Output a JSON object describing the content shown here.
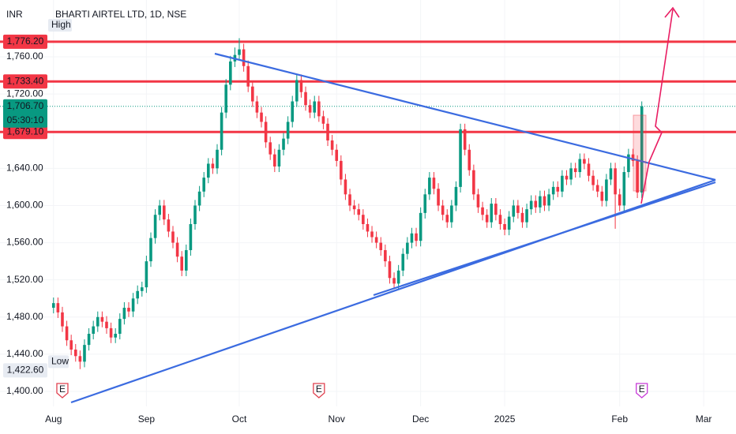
{
  "chart_data": {
    "type": "candlestick",
    "title": "BHARTI AIRTEL LTD, 1D, NSE",
    "currency": "INR",
    "up_color": "#089981",
    "down_color": "#f23645",
    "grid": true,
    "xlim": [
      -12.1,
      154.3
    ],
    "ylim": [
      1383.9,
      1821.1
    ],
    "xticks": [
      {
        "value": 0,
        "label": "Aug"
      },
      {
        "value": 21,
        "label": "Sep"
      },
      {
        "value": 42,
        "label": "Oct"
      },
      {
        "value": 64,
        "label": "Nov"
      },
      {
        "value": 83,
        "label": "Dec"
      },
      {
        "value": 102,
        "label": "2025"
      },
      {
        "value": 128,
        "label": "Feb"
      },
      {
        "value": 147,
        "label": "Mar"
      }
    ],
    "yticks": [
      {
        "value": 1400,
        "label": "1,400.00"
      },
      {
        "value": 1440,
        "label": "1,440.00"
      },
      {
        "value": 1480,
        "label": "1,480.00"
      },
      {
        "value": 1520,
        "label": "1,520.00"
      },
      {
        "value": 1560,
        "label": "1,560.00"
      },
      {
        "value": 1600,
        "label": "1,600.00"
      },
      {
        "value": 1640,
        "label": "1,640.00"
      },
      {
        "value": 1680,
        "label": "1,680.00"
      },
      {
        "value": 1720,
        "label": "1,720.00"
      },
      {
        "value": 1760,
        "label": "1,760.00"
      }
    ],
    "price_lines": [
      {
        "value": 1776.2,
        "label": "1,776.20",
        "color": "#f23645"
      },
      {
        "value": 1733.4,
        "label": "1,733.40",
        "color": "#f23645"
      },
      {
        "value": 1679.1,
        "label": "1,679.10",
        "color": "#f23645"
      }
    ],
    "last_price": {
      "value": 1706.7,
      "label": "1,706.70",
      "countdown": "05:30:10",
      "color": "#089981"
    },
    "high_marker": {
      "text": "High"
    },
    "low_marker": {
      "value": 1422.6,
      "label": "1,422.60",
      "text": "Low"
    },
    "events": [
      {
        "x": 2,
        "text": "E"
      },
      {
        "x": 60,
        "text": "E"
      },
      {
        "x": 133,
        "text": "E"
      }
    ],
    "open": [
      1490,
      1495,
      1485,
      1470,
      1455,
      1445,
      1438,
      1432,
      1450,
      1462,
      1470,
      1480,
      1475,
      1468,
      1458,
      1462,
      1478,
      1490,
      1486,
      1500,
      1508,
      1512,
      1540,
      1565,
      1590,
      1600,
      1585,
      1572,
      1560,
      1545,
      1530,
      1552,
      1580,
      1600,
      1615,
      1630,
      1645,
      1640,
      1660,
      1700,
      1730,
      1755,
      1762,
      1768,
      1750,
      1728,
      1712,
      1700,
      1690,
      1668,
      1655,
      1642,
      1660,
      1672,
      1690,
      1712,
      1735,
      1722,
      1708,
      1700,
      1712,
      1696,
      1688,
      1670,
      1660,
      1648,
      1628,
      1612,
      1600,
      1596,
      1590,
      1580,
      1572,
      1566,
      1560,
      1552,
      1540,
      1522,
      1516,
      1530,
      1548,
      1560,
      1570,
      1562,
      1592,
      1612,
      1630,
      1618,
      1600,
      1590,
      1582,
      1600,
      1620,
      1682,
      1660,
      1638,
      1612,
      1598,
      1590,
      1582,
      1602,
      1590,
      1580,
      1574,
      1588,
      1600,
      1592,
      1582,
      1596,
      1605,
      1598,
      1610,
      1600,
      1612,
      1620,
      1615,
      1632,
      1628,
      1640,
      1636,
      1650,
      1645,
      1632,
      1622,
      1615,
      1605,
      1628,
      1640,
      1612,
      1600,
      1636,
      1655,
      1648,
      1614
    ],
    "high": [
      1501,
      1501,
      1491,
      1476,
      1461,
      1451,
      1444,
      1456,
      1468,
      1476,
      1486,
      1486,
      1481,
      1474,
      1468,
      1484,
      1496,
      1496,
      1506,
      1514,
      1518,
      1546,
      1571,
      1596,
      1606,
      1606,
      1591,
      1578,
      1566,
      1551,
      1558,
      1586,
      1606,
      1621,
      1636,
      1651,
      1651,
      1666,
      1706,
      1736,
      1761,
      1770,
      1780,
      1774,
      1756,
      1734,
      1718,
      1706,
      1696,
      1674,
      1661,
      1666,
      1678,
      1696,
      1718,
      1741,
      1741,
      1728,
      1714,
      1718,
      1718,
      1702,
      1694,
      1676,
      1666,
      1654,
      1634,
      1618,
      1606,
      1602,
      1596,
      1586,
      1578,
      1572,
      1566,
      1558,
      1546,
      1528,
      1536,
      1554,
      1566,
      1576,
      1576,
      1598,
      1618,
      1636,
      1636,
      1624,
      1606,
      1596,
      1606,
      1626,
      1688,
      1688,
      1666,
      1644,
      1618,
      1604,
      1596,
      1608,
      1608,
      1596,
      1586,
      1594,
      1606,
      1606,
      1598,
      1602,
      1611,
      1611,
      1616,
      1616,
      1618,
      1626,
      1626,
      1638,
      1638,
      1646,
      1646,
      1656,
      1656,
      1651,
      1638,
      1628,
      1621,
      1634,
      1646,
      1646,
      1618,
      1642,
      1661,
      1661,
      1654,
      1712
    ],
    "low": [
      1484,
      1479,
      1464,
      1449,
      1439,
      1432,
      1424,
      1426,
      1444,
      1456,
      1464,
      1469,
      1462,
      1452,
      1452,
      1456,
      1472,
      1480,
      1480,
      1494,
      1502,
      1506,
      1534,
      1559,
      1584,
      1579,
      1566,
      1554,
      1539,
      1524,
      1524,
      1546,
      1574,
      1594,
      1609,
      1624,
      1634,
      1634,
      1654,
      1694,
      1724,
      1749,
      1756,
      1744,
      1722,
      1706,
      1694,
      1684,
      1662,
      1649,
      1636,
      1636,
      1654,
      1666,
      1684,
      1706,
      1716,
      1702,
      1694,
      1694,
      1690,
      1682,
      1664,
      1654,
      1642,
      1622,
      1606,
      1594,
      1590,
      1584,
      1574,
      1566,
      1560,
      1554,
      1546,
      1534,
      1516,
      1510,
      1510,
      1524,
      1542,
      1554,
      1556,
      1556,
      1586,
      1606,
      1612,
      1594,
      1584,
      1576,
      1576,
      1594,
      1614,
      1654,
      1632,
      1606,
      1592,
      1584,
      1576,
      1576,
      1584,
      1574,
      1568,
      1568,
      1582,
      1586,
      1576,
      1576,
      1590,
      1592,
      1592,
      1594,
      1594,
      1606,
      1609,
      1609,
      1622,
      1622,
      1630,
      1630,
      1639,
      1626,
      1616,
      1609,
      1599,
      1599,
      1622,
      1575,
      1594,
      1594,
      1630,
      1642,
      1608,
      1608
    ],
    "close": [
      1495,
      1485,
      1470,
      1455,
      1445,
      1438,
      1432,
      1450,
      1462,
      1470,
      1480,
      1475,
      1468,
      1458,
      1462,
      1478,
      1490,
      1486,
      1500,
      1508,
      1512,
      1540,
      1565,
      1590,
      1600,
      1585,
      1572,
      1560,
      1545,
      1530,
      1552,
      1580,
      1600,
      1615,
      1630,
      1645,
      1640,
      1660,
      1700,
      1730,
      1755,
      1762,
      1768,
      1750,
      1728,
      1712,
      1700,
      1690,
      1668,
      1655,
      1642,
      1660,
      1672,
      1690,
      1712,
      1735,
      1722,
      1708,
      1700,
      1712,
      1696,
      1688,
      1670,
      1660,
      1648,
      1628,
      1612,
      1600,
      1596,
      1590,
      1580,
      1572,
      1566,
      1560,
      1552,
      1540,
      1522,
      1516,
      1530,
      1548,
      1560,
      1570,
      1562,
      1592,
      1612,
      1630,
      1618,
      1600,
      1590,
      1582,
      1600,
      1620,
      1682,
      1660,
      1638,
      1612,
      1598,
      1590,
      1582,
      1602,
      1590,
      1580,
      1574,
      1588,
      1600,
      1592,
      1582,
      1596,
      1605,
      1598,
      1610,
      1600,
      1612,
      1620,
      1615,
      1632,
      1628,
      1640,
      1636,
      1650,
      1645,
      1632,
      1622,
      1615,
      1605,
      1628,
      1640,
      1612,
      1600,
      1636,
      1655,
      1648,
      1614,
      1706.7
    ]
  }
}
